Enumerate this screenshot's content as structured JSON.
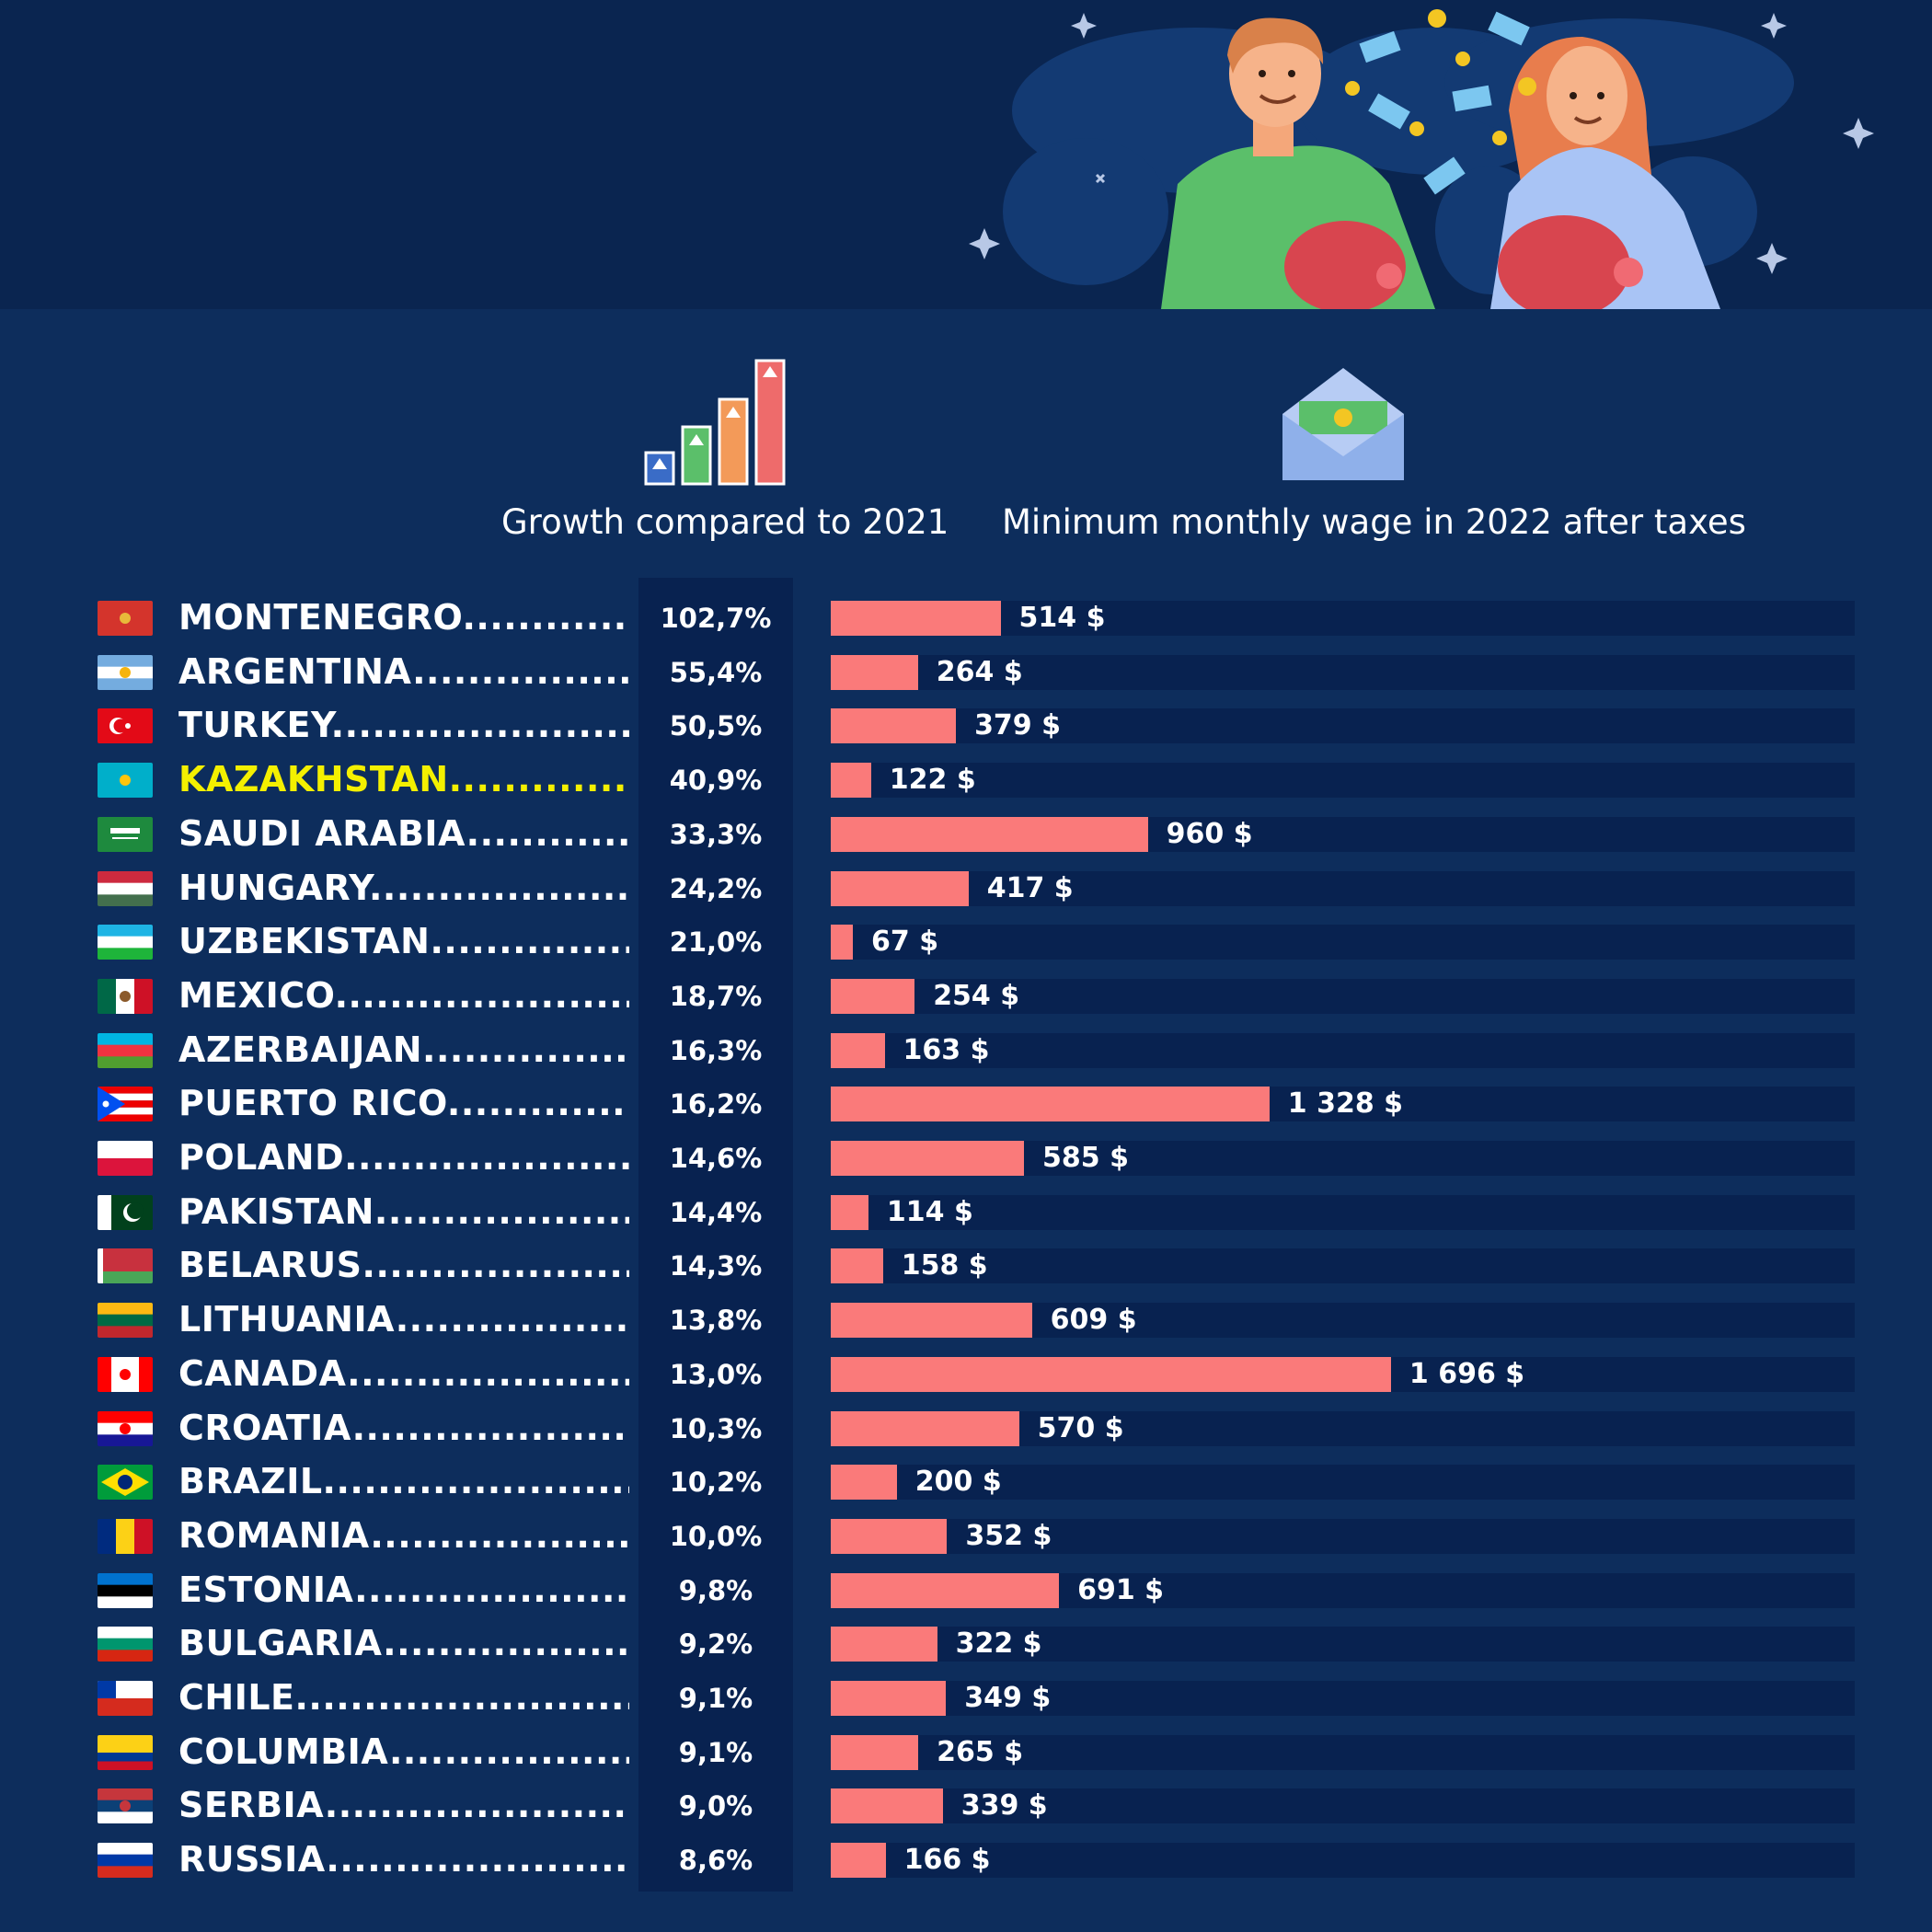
{
  "header": {
    "growth_label": "Growth compared to 2021",
    "wage_label": "Minimum monthly wage in 2022 after taxes"
  },
  "colors": {
    "background": "#0d2d5c",
    "banner": "#0a2550",
    "bar": "#fa7a7a",
    "track": "#082250",
    "highlight": "#f4f000"
  },
  "chart_data": {
    "type": "bar",
    "orientation": "horizontal",
    "title": "",
    "xlabel": "Minimum monthly wage in 2022 after taxes",
    "ylabel": "",
    "xlim": [
      0,
      3100
    ],
    "highlight": "KAZAKHSTAN",
    "rows": [
      {
        "country": "MONTENEGRO",
        "growth": "102,7%",
        "wage": 514,
        "wage_label": "514 $"
      },
      {
        "country": "ARGENTINA",
        "growth": "55,4%",
        "wage": 264,
        "wage_label": "264 $"
      },
      {
        "country": "TURKEY",
        "growth": "50,5%",
        "wage": 379,
        "wage_label": "379 $"
      },
      {
        "country": "KAZAKHSTAN",
        "growth": "40,9%",
        "wage": 122,
        "wage_label": "122 $"
      },
      {
        "country": "SAUDI ARABIA",
        "growth": "33,3%",
        "wage": 960,
        "wage_label": "960 $"
      },
      {
        "country": "HUNGARY",
        "growth": "24,2%",
        "wage": 417,
        "wage_label": "417 $"
      },
      {
        "country": "UZBEKISTAN",
        "growth": "21,0%",
        "wage": 67,
        "wage_label": "67 $"
      },
      {
        "country": "MEXICO",
        "growth": "18,7%",
        "wage": 254,
        "wage_label": "254 $"
      },
      {
        "country": "AZERBAIJAN",
        "growth": "16,3%",
        "wage": 163,
        "wage_label": "163 $"
      },
      {
        "country": "PUERTO RICO",
        "growth": "16,2%",
        "wage": 1328,
        "wage_label": "1 328 $"
      },
      {
        "country": "POLAND",
        "growth": "14,6%",
        "wage": 585,
        "wage_label": "585 $"
      },
      {
        "country": "PAKISTAN",
        "growth": "14,4%",
        "wage": 114,
        "wage_label": "114 $"
      },
      {
        "country": "BELARUS",
        "growth": "14,3%",
        "wage": 158,
        "wage_label": "158 $"
      },
      {
        "country": "LITHUANIA",
        "growth": "13,8%",
        "wage": 609,
        "wage_label": "609 $"
      },
      {
        "country": "CANADA",
        "growth": "13,0%",
        "wage": 1696,
        "wage_label": "1 696 $"
      },
      {
        "country": "CROATIA",
        "growth": "10,3%",
        "wage": 570,
        "wage_label": "570 $"
      },
      {
        "country": "BRAZIL",
        "growth": "10,2%",
        "wage": 200,
        "wage_label": "200 $"
      },
      {
        "country": "ROMANIA",
        "growth": "10,0%",
        "wage": 352,
        "wage_label": "352 $"
      },
      {
        "country": "ESTONIA",
        "growth": "9,8%",
        "wage": 691,
        "wage_label": "691 $"
      },
      {
        "country": "BULGARIA",
        "growth": "9,2%",
        "wage": 322,
        "wage_label": "322 $"
      },
      {
        "country": "CHILE",
        "growth": "9,1%",
        "wage": 349,
        "wage_label": "349 $"
      },
      {
        "country": "COLUMBIA",
        "growth": "9,1%",
        "wage": 265,
        "wage_label": "265 $"
      },
      {
        "country": "SERBIA",
        "growth": "9,0%",
        "wage": 339,
        "wage_label": "339 $"
      },
      {
        "country": "RUSSIA",
        "growth": "8,6%",
        "wage": 166,
        "wage_label": "166 $"
      }
    ]
  },
  "flags": {
    "MONTENEGRO": {
      "kind": "solid",
      "colors": [
        "#d4342c"
      ],
      "emblem": "#e8b93a"
    },
    "ARGENTINA": {
      "kind": "h",
      "colors": [
        "#74acdf",
        "#ffffff",
        "#74acdf"
      ],
      "emblem": "#f6b40e"
    },
    "TURKEY": {
      "kind": "solid",
      "colors": [
        "#e30a17"
      ],
      "emblem": "crescent"
    },
    "KAZAKHSTAN": {
      "kind": "solid",
      "colors": [
        "#00afca"
      ],
      "emblem": "#fec50c"
    },
    "SAUDI ARABIA": {
      "kind": "solid",
      "colors": [
        "#1e8a3e"
      ],
      "emblem": "script"
    },
    "HUNGARY": {
      "kind": "h",
      "colors": [
        "#cd2a3e",
        "#ffffff",
        "#436f4d"
      ]
    },
    "UZBEKISTAN": {
      "kind": "h",
      "colors": [
        "#1eb4e4",
        "#ffffff",
        "#1eb53a"
      ]
    },
    "MEXICO": {
      "kind": "v",
      "colors": [
        "#006847",
        "#ffffff",
        "#ce1126"
      ],
      "emblem": "#8b5a2b"
    },
    "AZERBAIJAN": {
      "kind": "h",
      "colors": [
        "#00b5e2",
        "#ef3340",
        "#509e2f"
      ]
    },
    "PUERTO RICO": {
      "kind": "pr",
      "colors": [
        "#ed0000",
        "#ffffff",
        "#0050f0"
      ]
    },
    "POLAND": {
      "kind": "h",
      "colors": [
        "#ffffff",
        "#dc143c"
      ]
    },
    "PAKISTAN": {
      "kind": "pk",
      "colors": [
        "#ffffff",
        "#01411c"
      ]
    },
    "BELARUS": {
      "kind": "by",
      "colors": [
        "#c8313e",
        "#4aa657"
      ]
    },
    "LITHUANIA": {
      "kind": "h",
      "colors": [
        "#fdb913",
        "#006a44",
        "#c1272d"
      ]
    },
    "CANADA": {
      "kind": "v3",
      "colors": [
        "#ff0000",
        "#ffffff",
        "#ff0000"
      ],
      "emblem": "#ff0000"
    },
    "CROATIA": {
      "kind": "h",
      "colors": [
        "#ff0000",
        "#ffffff",
        "#171796"
      ],
      "emblem": "#ff0000"
    },
    "BRAZIL": {
      "kind": "br",
      "colors": [
        "#009c3b",
        "#ffdf00",
        "#002776"
      ]
    },
    "ROMANIA": {
      "kind": "v",
      "colors": [
        "#002b7f",
        "#fcd116",
        "#ce1126"
      ]
    },
    "ESTONIA": {
      "kind": "h",
      "colors": [
        "#0072ce",
        "#000000",
        "#ffffff"
      ]
    },
    "BULGARIA": {
      "kind": "h",
      "colors": [
        "#ffffff",
        "#00966e",
        "#d62612"
      ]
    },
    "CHILE": {
      "kind": "cl",
      "colors": [
        "#ffffff",
        "#d52b1e",
        "#0039a6"
      ]
    },
    "COLUMBIA": {
      "kind": "co",
      "colors": [
        "#fcd116",
        "#003893",
        "#ce1126"
      ]
    },
    "SERBIA": {
      "kind": "h",
      "colors": [
        "#c6363c",
        "#0c4076",
        "#ffffff"
      ],
      "emblem": "#c6363c"
    },
    "RUSSIA": {
      "kind": "h",
      "colors": [
        "#ffffff",
        "#0039a6",
        "#d52b1e"
      ]
    }
  }
}
